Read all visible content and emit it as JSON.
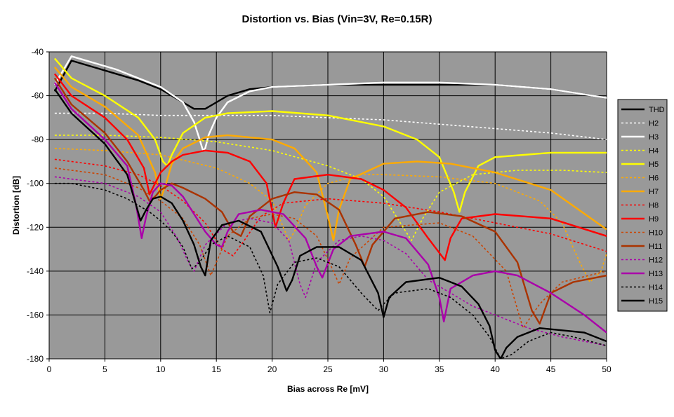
{
  "chart_data": {
    "type": "line",
    "title": "Distortion vs. Bias (Vin=3V, Re=0.15R)",
    "xlabel": "Bias across Re [mV]",
    "ylabel": "Distortion [dB]",
    "xlim": [
      0,
      50
    ],
    "ylim": [
      -180,
      -40
    ],
    "xticks": [
      0,
      5,
      10,
      15,
      20,
      25,
      30,
      35,
      40,
      45,
      50
    ],
    "yticks": [
      -40,
      -60,
      -80,
      -100,
      -120,
      -140,
      -160,
      -180
    ],
    "grid": true,
    "plot_background": "#999999",
    "legend_position": "right",
    "series": [
      {
        "name": "THD",
        "color": "#000000",
        "dash": false,
        "x": [
          0.5,
          2,
          4,
          6,
          8,
          10,
          12,
          13,
          14,
          15,
          16,
          18,
          20,
          25,
          30,
          35,
          40,
          45,
          50
        ],
        "y": [
          -58,
          -44,
          -47,
          -50,
          -53,
          -57,
          -63,
          -66,
          -66,
          -63,
          -60,
          -57,
          -56,
          -55,
          -55,
          -55,
          -55,
          -57,
          -61
        ]
      },
      {
        "name": "H2",
        "color": "#ffffff",
        "dash": true,
        "x": [
          0.5,
          5,
          10,
          15,
          20,
          25,
          30,
          35,
          40,
          45,
          50
        ],
        "y": [
          -68,
          -68,
          -69,
          -69,
          -69,
          -70,
          -71,
          -73,
          -75,
          -77,
          -80
        ]
      },
      {
        "name": "H3",
        "color": "#ffffff",
        "dash": false,
        "x": [
          0.5,
          2,
          4,
          6,
          8,
          10,
          12,
          13,
          13.5,
          13.8,
          14,
          14.3,
          15,
          16,
          18,
          20,
          25,
          30,
          35,
          40,
          45,
          50
        ],
        "y": [
          -55,
          -42,
          -45,
          -48,
          -52,
          -56,
          -63,
          -72,
          -80,
          -85,
          -84,
          -78,
          -70,
          -63,
          -58,
          -56,
          -55,
          -54,
          -54,
          -55,
          -57,
          -61
        ]
      },
      {
        "name": "H4",
        "color": "#ffff00",
        "dash": true,
        "x": [
          0.5,
          5,
          10,
          15,
          20,
          25,
          28,
          30,
          31.5,
          32.5,
          33.5,
          35,
          38,
          42,
          46,
          50
        ],
        "y": [
          -78,
          -78,
          -79,
          -81,
          -85,
          -92,
          -98,
          -106,
          -118,
          -126,
          -116,
          -104,
          -96,
          -94,
          -94,
          -95
        ]
      },
      {
        "name": "H5",
        "color": "#ffff00",
        "dash": false,
        "x": [
          0.5,
          2,
          5,
          8,
          9.5,
          10.2,
          10.6,
          11,
          12,
          14,
          16,
          20,
          25,
          30,
          33,
          35,
          36.3,
          36.8,
          37.3,
          38.5,
          40,
          45,
          50
        ],
        "y": [
          -43,
          -52,
          -60,
          -70,
          -80,
          -90,
          -92,
          -87,
          -77,
          -70,
          -68,
          -67,
          -69,
          -74,
          -80,
          -88,
          -104,
          -113,
          -104,
          -92,
          -88,
          -86,
          -86
        ]
      },
      {
        "name": "H6",
        "color": "#ffaa00",
        "dash": true,
        "x": [
          0.5,
          5,
          10,
          15,
          18,
          20,
          21,
          21.5,
          22,
          23,
          25,
          28,
          30,
          35,
          40,
          44,
          46,
          47.5,
          48.5,
          49.5,
          50
        ],
        "y": [
          -84,
          -85,
          -87,
          -93,
          -100,
          -108,
          -120,
          -126,
          -122,
          -110,
          -100,
          -96,
          -96,
          -97,
          -100,
          -108,
          -118,
          -135,
          -145,
          -140,
          -132
        ]
      },
      {
        "name": "H7",
        "color": "#ffaa00",
        "dash": false,
        "x": [
          0.5,
          2,
          5,
          8,
          9.5,
          10,
          10.5,
          11,
          12,
          14,
          16,
          20,
          22,
          24,
          25,
          25.5,
          26,
          27,
          30,
          33,
          36,
          40,
          45,
          50
        ],
        "y": [
          -47,
          -56,
          -65,
          -78,
          -95,
          -107,
          -100,
          -91,
          -84,
          -79,
          -78,
          -80,
          -84,
          -95,
          -115,
          -126,
          -112,
          -98,
          -91,
          -90,
          -91,
          -95,
          -103,
          -121
        ]
      },
      {
        "name": "H8",
        "color": "#ff0000",
        "dash": true,
        "x": [
          0.5,
          5,
          8,
          10,
          12,
          14,
          15.5,
          16.5,
          17.5,
          19,
          21,
          25,
          30,
          35,
          40,
          45,
          50
        ],
        "y": [
          -89,
          -92,
          -96,
          -101,
          -108,
          -118,
          -130,
          -133,
          -126,
          -115,
          -109,
          -107,
          -109,
          -113,
          -118,
          -123,
          -131
        ]
      },
      {
        "name": "H9",
        "color": "#ff0000",
        "dash": false,
        "x": [
          0.5,
          2,
          5,
          7,
          8.5,
          9,
          9.5,
          10,
          11,
          12,
          14,
          16,
          18,
          19.5,
          20.3,
          21,
          22,
          25,
          28,
          30,
          32,
          34,
          35.5,
          36,
          37,
          40,
          45,
          50
        ],
        "y": [
          -50,
          -60,
          -70,
          -80,
          -93,
          -105,
          -100,
          -95,
          -90,
          -87,
          -85,
          -86,
          -90,
          -100,
          -120,
          -109,
          -98,
          -96,
          -98,
          -103,
          -111,
          -125,
          -135,
          -125,
          -116,
          -114,
          -116,
          -124
        ]
      },
      {
        "name": "H10",
        "color": "#cc4400",
        "dash": true,
        "x": [
          0.5,
          5,
          8,
          10,
          12,
          13.5,
          14.5,
          15,
          16,
          18,
          20,
          22,
          24,
          25.5,
          26,
          27,
          30,
          35,
          38,
          41,
          42.5,
          44,
          46,
          50
        ],
        "y": [
          -93,
          -96,
          -102,
          -108,
          -116,
          -128,
          -142,
          -136,
          -124,
          -116,
          -114,
          -116,
          -124,
          -140,
          -146,
          -134,
          -120,
          -118,
          -124,
          -140,
          -166,
          -155,
          -145,
          -140
        ]
      },
      {
        "name": "H11",
        "color": "#aa3300",
        "dash": false,
        "x": [
          0.5,
          2,
          5,
          7,
          8.5,
          9,
          9.5,
          10,
          11,
          12,
          14,
          15.5,
          16.5,
          17.2,
          18,
          20,
          22,
          24,
          26,
          27.5,
          28.3,
          29,
          31,
          34,
          37,
          40,
          42,
          43.3,
          44,
          45,
          47,
          50
        ],
        "y": [
          -52,
          -64,
          -77,
          -90,
          -103,
          -108,
          -106,
          -103,
          -100,
          -102,
          -107,
          -113,
          -122,
          -124,
          -115,
          -107,
          -104,
          -105,
          -112,
          -128,
          -138,
          -128,
          -116,
          -113,
          -115,
          -122,
          -136,
          -158,
          -164,
          -150,
          -145,
          -142
        ]
      },
      {
        "name": "H12",
        "color": "#aa00aa",
        "dash": true,
        "x": [
          0.5,
          5,
          8,
          10,
          11.5,
          12.5,
          13,
          14,
          16,
          18,
          20,
          21.5,
          22.5,
          23,
          24,
          26,
          28,
          30,
          32,
          34,
          36,
          38,
          40,
          43,
          46,
          50
        ],
        "y": [
          -97,
          -100,
          -106,
          -113,
          -125,
          -136,
          -140,
          -128,
          -118,
          -116,
          -118,
          -126,
          -146,
          -152,
          -136,
          -126,
          -124,
          -126,
          -132,
          -144,
          -150,
          -156,
          -160,
          -166,
          -170,
          -174
        ]
      },
      {
        "name": "H13",
        "color": "#aa00aa",
        "dash": false,
        "x": [
          0.5,
          2,
          5,
          7,
          7.8,
          8.3,
          8.7,
          9.3,
          10,
          11,
          12,
          13,
          14,
          15,
          15.5,
          16,
          17,
          19,
          21,
          23,
          24,
          24.5,
          25.5,
          27,
          30,
          32,
          34,
          35,
          35.4,
          36,
          38,
          40,
          42,
          45,
          48,
          50
        ],
        "y": [
          -54,
          -66,
          -80,
          -92,
          -110,
          -125,
          -115,
          -104,
          -100,
          -101,
          -106,
          -114,
          -122,
          -128,
          -129,
          -122,
          -114,
          -112,
          -114,
          -125,
          -138,
          -143,
          -130,
          -124,
          -122,
          -125,
          -137,
          -152,
          -163,
          -148,
          -142,
          -140,
          -142,
          -150,
          -160,
          -168
        ]
      },
      {
        "name": "H14",
        "color": "#000000",
        "dash": true,
        "x": [
          0.5,
          2,
          5,
          7,
          9,
          10,
          11,
          12,
          12.8,
          13.5,
          14.5,
          16,
          18,
          19.2,
          19.8,
          20.5,
          22,
          24,
          26,
          28,
          29.5,
          30,
          31,
          34,
          36,
          38,
          39.5,
          40.5,
          41.5,
          43,
          45,
          47,
          50
        ],
        "y": [
          -100,
          -100,
          -103,
          -107,
          -113,
          -117,
          -122,
          -129,
          -139,
          -136,
          -128,
          -124,
          -129,
          -142,
          -159,
          -146,
          -136,
          -134,
          -138,
          -150,
          -158,
          -155,
          -150,
          -148,
          -152,
          -160,
          -170,
          -180,
          -178,
          -172,
          -168,
          -170,
          -174
        ]
      },
      {
        "name": "H15",
        "color": "#000000",
        "dash": false,
        "x": [
          0.5,
          2,
          5,
          7,
          7.8,
          8.2,
          8.7,
          9.3,
          10,
          11,
          12,
          13,
          13.6,
          14,
          14.5,
          15.5,
          17,
          19,
          20.5,
          21.3,
          21.8,
          22.5,
          24,
          26,
          28,
          29.5,
          30,
          30.5,
          32,
          35,
          37,
          38.5,
          39.5,
          40,
          40.5,
          41,
          42,
          44,
          46,
          48,
          50
        ],
        "y": [
          -57,
          -68,
          -82,
          -96,
          -110,
          -117,
          -112,
          -107,
          -106,
          -109,
          -117,
          -128,
          -138,
          -142,
          -126,
          -119,
          -117,
          -122,
          -138,
          -149,
          -144,
          -133,
          -129,
          -129,
          -135,
          -150,
          -161,
          -152,
          -145,
          -143,
          -147,
          -155,
          -165,
          -176,
          -180,
          -175,
          -170,
          -166,
          -167,
          -168,
          -172
        ]
      }
    ]
  }
}
